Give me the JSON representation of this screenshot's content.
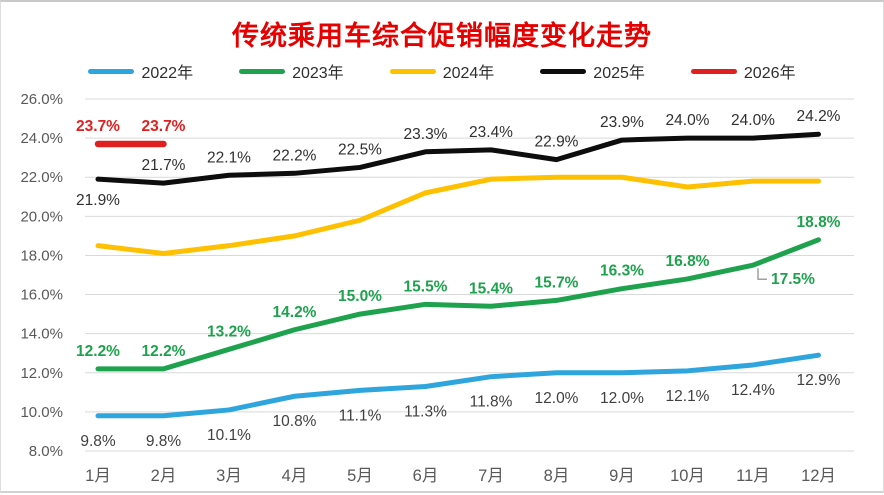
{
  "chart_data": {
    "type": "line",
    "title": "传统乘用车综合促销幅度变化走势",
    "title_color": "#E60000",
    "legend_position": "top",
    "grid": true,
    "categories": [
      "1月",
      "2月",
      "3月",
      "4月",
      "5月",
      "6月",
      "7月",
      "8月",
      "9月",
      "10月",
      "11月",
      "12月"
    ],
    "y_axis": {
      "min": 8,
      "max": 26,
      "step": 2,
      "tick_labels": [
        "26.0%",
        "24.0%",
        "22.0%",
        "20.0%",
        "18.0%",
        "16.0%",
        "14.0%",
        "12.0%",
        "10.0%",
        "8.0%"
      ]
    },
    "series": [
      {
        "name": "2022年",
        "color": "#2FA5DD",
        "values": [
          9.8,
          9.8,
          10.1,
          10.8,
          11.1,
          11.3,
          11.8,
          12.0,
          12.0,
          12.1,
          12.4,
          12.9
        ],
        "labels": [
          "9.8%",
          "9.8%",
          "10.1%",
          "10.8%",
          "11.1%",
          "11.3%",
          "11.8%",
          "12.0%",
          "12.0%",
          "12.1%",
          "12.4%",
          "12.9%"
        ],
        "labels_position": "below",
        "label_color": "#404040",
        "label_bold": false
      },
      {
        "name": "2023年",
        "color": "#1FA24E",
        "values": [
          12.2,
          12.2,
          13.2,
          14.2,
          15.0,
          15.5,
          15.4,
          15.7,
          16.3,
          16.8,
          17.5,
          18.8
        ],
        "labels": [
          "12.2%",
          "12.2%",
          "13.2%",
          "14.2%",
          "15.0%",
          "15.5%",
          "15.4%",
          "15.7%",
          "16.3%",
          "16.8%",
          "17.5%",
          "18.8%"
        ],
        "labels_position": "above",
        "label_color": "#1FA24E",
        "label_bold": true
      },
      {
        "name": "2024年",
        "color": "#FFC000",
        "values": [
          18.5,
          18.1,
          18.5,
          19.0,
          19.8,
          21.2,
          21.9,
          22.0,
          22.0,
          21.5,
          21.8,
          21.8
        ],
        "labels": null,
        "labels_position": "none",
        "label_color": "#FFC000",
        "label_bold": false
      },
      {
        "name": "2025年",
        "color": "#0D0D0D",
        "values": [
          21.9,
          21.7,
          22.1,
          22.2,
          22.5,
          23.3,
          23.4,
          22.9,
          23.9,
          24.0,
          24.0,
          24.2
        ],
        "labels": [
          "21.9%",
          "21.7%",
          "22.1%",
          "22.2%",
          "22.5%",
          "23.3%",
          "23.4%",
          "22.9%",
          "23.9%",
          "24.0%",
          "24.0%",
          "24.2%"
        ],
        "labels_position": "above",
        "label_color": "#303030",
        "label_bold": false
      },
      {
        "name": "2026年",
        "color": "#DF2020",
        "values": [
          23.7,
          23.7,
          null,
          null,
          null,
          null,
          null,
          null,
          null,
          null,
          null,
          null
        ],
        "labels": [
          "23.7%",
          "23.7%",
          null,
          null,
          null,
          null,
          null,
          null,
          null,
          null,
          null,
          null
        ],
        "labels_position": "above",
        "label_color": "#DF2020",
        "label_bold": true
      }
    ]
  }
}
